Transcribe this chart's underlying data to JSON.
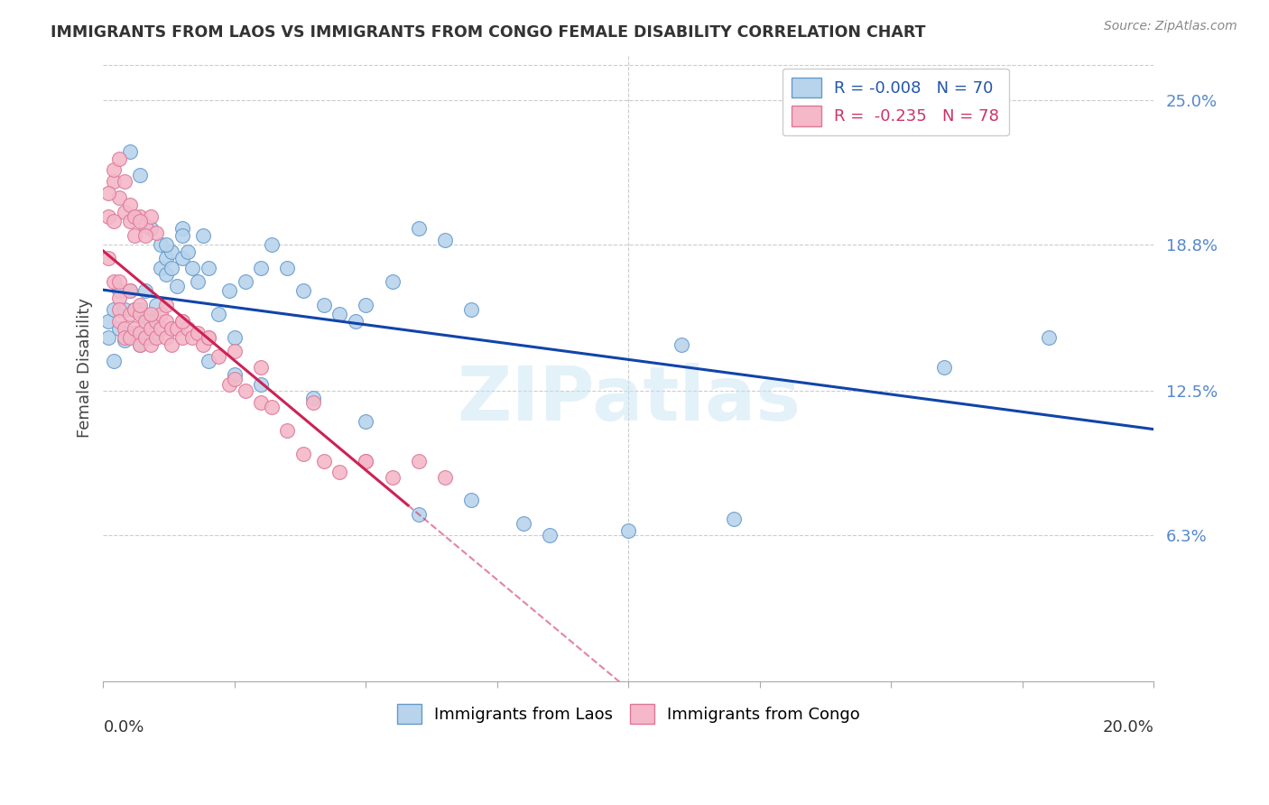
{
  "title": "IMMIGRANTS FROM LAOS VS IMMIGRANTS FROM CONGO FEMALE DISABILITY CORRELATION CHART",
  "source": "Source: ZipAtlas.com",
  "ylabel": "Female Disability",
  "right_ytick_vals": [
    0.063,
    0.125,
    0.188,
    0.25
  ],
  "right_yticklabels": [
    "6.3%",
    "12.5%",
    "18.8%",
    "25.0%"
  ],
  "xmin": 0.0,
  "xmax": 0.2,
  "ymin": 0.0,
  "ymax": 0.27,
  "laos_color": "#b8d4ec",
  "laos_edge": "#6699cc",
  "congo_color": "#f4b8c8",
  "congo_edge": "#dd7799",
  "laos_trend_color": "#1144aa",
  "congo_trend_color": "#cc2255",
  "watermark": "ZIPatlas",
  "laos_legend": "R = -0.008   N = 70",
  "congo_legend": "R =  -0.235   N = 78",
  "legend_laos_text_color": "#2255aa",
  "legend_congo_text_color": "#cc3366",
  "background_color": "#ffffff",
  "laos_x": [
    0.001,
    0.001,
    0.002,
    0.002,
    0.003,
    0.003,
    0.004,
    0.004,
    0.005,
    0.005,
    0.006,
    0.006,
    0.007,
    0.007,
    0.008,
    0.008,
    0.009,
    0.009,
    0.01,
    0.01,
    0.011,
    0.011,
    0.012,
    0.012,
    0.013,
    0.013,
    0.014,
    0.015,
    0.015,
    0.016,
    0.017,
    0.018,
    0.019,
    0.02,
    0.022,
    0.024,
    0.025,
    0.027,
    0.03,
    0.032,
    0.035,
    0.038,
    0.042,
    0.045,
    0.05,
    0.055,
    0.06,
    0.065,
    0.07,
    0.005,
    0.007,
    0.009,
    0.012,
    0.015,
    0.02,
    0.025,
    0.03,
    0.04,
    0.05,
    0.06,
    0.07,
    0.08,
    0.1,
    0.12,
    0.15,
    0.16,
    0.18,
    0.085,
    0.11,
    0.048
  ],
  "laos_y": [
    0.155,
    0.148,
    0.16,
    0.138,
    0.168,
    0.152,
    0.16,
    0.147,
    0.168,
    0.15,
    0.16,
    0.15,
    0.16,
    0.145,
    0.168,
    0.157,
    0.155,
    0.148,
    0.162,
    0.155,
    0.178,
    0.188,
    0.182,
    0.175,
    0.185,
    0.178,
    0.17,
    0.195,
    0.182,
    0.185,
    0.178,
    0.172,
    0.192,
    0.178,
    0.158,
    0.168,
    0.148,
    0.172,
    0.178,
    0.188,
    0.178,
    0.168,
    0.162,
    0.158,
    0.162,
    0.172,
    0.195,
    0.19,
    0.16,
    0.228,
    0.218,
    0.195,
    0.188,
    0.192,
    0.138,
    0.132,
    0.128,
    0.122,
    0.112,
    0.072,
    0.078,
    0.068,
    0.065,
    0.07,
    0.248,
    0.135,
    0.148,
    0.063,
    0.145,
    0.155
  ],
  "congo_x": [
    0.001,
    0.001,
    0.002,
    0.002,
    0.003,
    0.003,
    0.003,
    0.004,
    0.004,
    0.005,
    0.005,
    0.006,
    0.006,
    0.007,
    0.007,
    0.007,
    0.008,
    0.008,
    0.009,
    0.009,
    0.01,
    0.01,
    0.011,
    0.011,
    0.012,
    0.012,
    0.013,
    0.013,
    0.014,
    0.015,
    0.015,
    0.016,
    0.017,
    0.018,
    0.019,
    0.02,
    0.022,
    0.024,
    0.025,
    0.027,
    0.03,
    0.032,
    0.035,
    0.038,
    0.042,
    0.045,
    0.05,
    0.055,
    0.06,
    0.065,
    0.003,
    0.005,
    0.007,
    0.009,
    0.012,
    0.015,
    0.02,
    0.025,
    0.03,
    0.04,
    0.002,
    0.003,
    0.004,
    0.005,
    0.006,
    0.007,
    0.008,
    0.009,
    0.01,
    0.001,
    0.002,
    0.003,
    0.004,
    0.005,
    0.006,
    0.007,
    0.008,
    0.05
  ],
  "congo_y": [
    0.2,
    0.182,
    0.198,
    0.172,
    0.165,
    0.16,
    0.155,
    0.152,
    0.148,
    0.158,
    0.148,
    0.16,
    0.152,
    0.158,
    0.15,
    0.145,
    0.155,
    0.148,
    0.152,
    0.145,
    0.155,
    0.148,
    0.158,
    0.152,
    0.155,
    0.148,
    0.152,
    0.145,
    0.152,
    0.155,
    0.148,
    0.152,
    0.148,
    0.15,
    0.145,
    0.148,
    0.14,
    0.128,
    0.13,
    0.125,
    0.12,
    0.118,
    0.108,
    0.098,
    0.095,
    0.09,
    0.095,
    0.088,
    0.095,
    0.088,
    0.172,
    0.168,
    0.162,
    0.158,
    0.162,
    0.155,
    0.148,
    0.142,
    0.135,
    0.12,
    0.215,
    0.208,
    0.202,
    0.198,
    0.192,
    0.2,
    0.196,
    0.2,
    0.193,
    0.21,
    0.22,
    0.225,
    0.215,
    0.205,
    0.2,
    0.198,
    0.192,
    0.095
  ]
}
